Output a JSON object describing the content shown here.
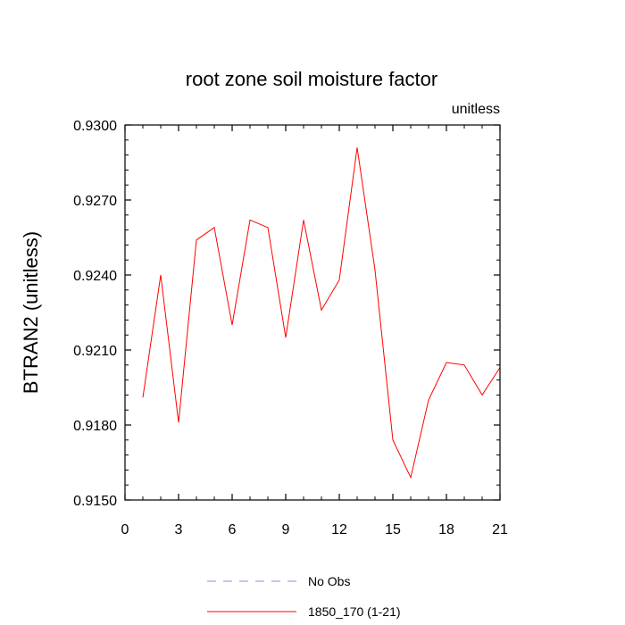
{
  "chart_data": {
    "type": "line",
    "title": "root zone soil moisture factor",
    "units_label": "unitless",
    "ylabel": "BTRAN2  (unitless)",
    "xlabel": "",
    "xlim": [
      0,
      21
    ],
    "ylim": [
      0.915,
      0.93
    ],
    "x_ticks": [
      0,
      3,
      6,
      9,
      12,
      15,
      18,
      21
    ],
    "x_tick_labels": [
      "0",
      "3",
      "6",
      "9",
      "12",
      "15",
      "18",
      "21"
    ],
    "y_ticks": [
      0.915,
      0.918,
      0.921,
      0.924,
      0.927,
      0.93
    ],
    "y_tick_labels": [
      "0.9150",
      "0.9180",
      "0.9210",
      "0.9240",
      "0.9270",
      "0.9300"
    ],
    "grid": false,
    "legend_position": "bottom",
    "series": [
      {
        "name": "No Obs",
        "color": "#8888ee",
        "style": "dashed",
        "x": [],
        "y": []
      },
      {
        "name": "1850_170 (1-21)",
        "color": "#ff0000",
        "style": "solid",
        "x": [
          1,
          2,
          3,
          4,
          5,
          6,
          7,
          8,
          9,
          10,
          11,
          12,
          13,
          14,
          15,
          16,
          17,
          18,
          19,
          20,
          21
        ],
        "y": [
          0.9191,
          0.924,
          0.9181,
          0.9254,
          0.9259,
          0.922,
          0.9262,
          0.9259,
          0.9215,
          0.9262,
          0.9226,
          0.9238,
          0.9291,
          0.9242,
          0.9174,
          0.9159,
          0.919,
          0.9205,
          0.9204,
          0.9192,
          0.9203
        ]
      }
    ]
  }
}
